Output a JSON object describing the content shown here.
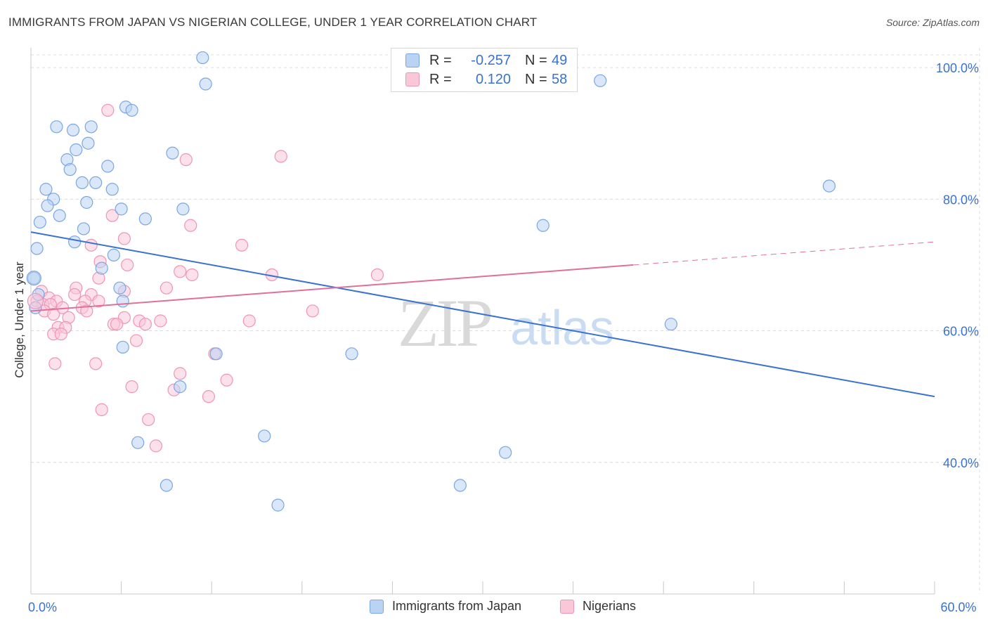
{
  "header": {
    "title": "IMMIGRANTS FROM JAPAN VS NIGERIAN COLLEGE, UNDER 1 YEAR CORRELATION CHART",
    "source": "Source: ZipAtlas.com"
  },
  "legend": {
    "rows": [
      {
        "r_label": "R =",
        "r_value": "-0.257",
        "n_label": "N =",
        "n_value": "49"
      },
      {
        "r_label": "R =",
        "r_value": "0.120",
        "n_label": "N =",
        "n_value": "58"
      }
    ]
  },
  "watermark": {
    "zip": "ZIP",
    "atlas": "atlas"
  },
  "colors": {
    "blue": "#3a72d0",
    "blue_fill": "#b9d3f4",
    "blue_stroke": "#7aa6e3",
    "pink": "#e0709a",
    "pink_fill": "#f9c7d8",
    "pink_stroke": "#ee95b5",
    "grid": "#dcdcdc",
    "tick_label": "#3a72d0"
  },
  "chart_data": {
    "type": "scatter",
    "xlim": [
      0,
      60
    ],
    "ylim": [
      20,
      103
    ],
    "ylabel": "College, Under 1 year",
    "x_tick_labels": [
      {
        "value": 0,
        "label": "0.0%"
      },
      {
        "value": 60,
        "label": "60.0%"
      }
    ],
    "y_tick_labels": [
      {
        "value": 100,
        "label": "100.0%"
      },
      {
        "value": 80,
        "label": "80.0%"
      },
      {
        "value": 60,
        "label": "60.0%"
      },
      {
        "value": 40,
        "label": "40.0%"
      }
    ],
    "grid": true,
    "legend_position": "top-center",
    "series": [
      {
        "name": "Immigrants from Japan",
        "color": "#3a72d0",
        "trend": {
          "x": [
            0,
            60
          ],
          "y": [
            75.0,
            50.0
          ],
          "dashed_from": null
        },
        "points": [
          [
            11.4,
            101.5
          ],
          [
            11.6,
            97.5
          ],
          [
            37.8,
            98.0
          ],
          [
            6.3,
            94.0
          ],
          [
            6.7,
            93.5
          ],
          [
            3.0,
            87.5
          ],
          [
            3.8,
            88.5
          ],
          [
            2.8,
            90.5
          ],
          [
            1.7,
            91.0
          ],
          [
            4.0,
            91.0
          ],
          [
            9.4,
            87.0
          ],
          [
            2.4,
            86.0
          ],
          [
            5.1,
            85.0
          ],
          [
            2.6,
            84.5
          ],
          [
            3.4,
            82.5
          ],
          [
            4.3,
            82.5
          ],
          [
            5.4,
            81.5
          ],
          [
            1.0,
            81.5
          ],
          [
            1.5,
            80.0
          ],
          [
            1.1,
            79.0
          ],
          [
            53.0,
            82.0
          ],
          [
            3.7,
            79.5
          ],
          [
            6.0,
            78.5
          ],
          [
            10.1,
            78.5
          ],
          [
            1.9,
            77.5
          ],
          [
            7.6,
            77.0
          ],
          [
            0.6,
            76.5
          ],
          [
            3.5,
            75.5
          ],
          [
            34.0,
            76.0
          ],
          [
            2.9,
            73.5
          ],
          [
            0.4,
            72.5
          ],
          [
            5.5,
            71.5
          ],
          [
            4.7,
            69.5
          ],
          [
            0.2,
            68.0
          ],
          [
            5.9,
            66.5
          ],
          [
            0.5,
            65.5
          ],
          [
            6.1,
            64.5
          ],
          [
            0.3,
            63.5
          ],
          [
            42.5,
            61.0
          ],
          [
            6.1,
            57.5
          ],
          [
            12.3,
            56.5
          ],
          [
            21.3,
            56.5
          ],
          [
            9.9,
            51.5
          ],
          [
            15.5,
            44.0
          ],
          [
            7.1,
            43.0
          ],
          [
            31.5,
            41.5
          ],
          [
            9.0,
            36.5
          ],
          [
            28.5,
            36.5
          ],
          [
            16.4,
            33.5
          ]
        ]
      },
      {
        "name": "Nigerians",
        "color": "#e0709a",
        "trend": {
          "x": [
            0,
            40
          ],
          "y": [
            63.0,
            70.0
          ],
          "dashed_from": 40,
          "dashed_to": [
            60,
            73.5
          ]
        },
        "points": [
          [
            5.1,
            93.5
          ],
          [
            16.6,
            86.5
          ],
          [
            10.3,
            86.0
          ],
          [
            5.4,
            77.5
          ],
          [
            10.6,
            76.0
          ],
          [
            6.2,
            74.0
          ],
          [
            4.0,
            73.0
          ],
          [
            14.0,
            73.0
          ],
          [
            6.4,
            70.0
          ],
          [
            4.6,
            70.5
          ],
          [
            10.7,
            68.5
          ],
          [
            16.0,
            68.5
          ],
          [
            9.9,
            69.0
          ],
          [
            23.0,
            68.5
          ],
          [
            4.5,
            68.0
          ],
          [
            3.0,
            66.5
          ],
          [
            9.0,
            66.5
          ],
          [
            0.7,
            66.0
          ],
          [
            6.2,
            66.0
          ],
          [
            2.9,
            65.5
          ],
          [
            4.0,
            65.5
          ],
          [
            1.2,
            65.0
          ],
          [
            3.6,
            64.5
          ],
          [
            4.5,
            64.5
          ],
          [
            0.4,
            64.5
          ],
          [
            1.7,
            64.5
          ],
          [
            0.8,
            64.0
          ],
          [
            1.3,
            64.0
          ],
          [
            2.1,
            63.5
          ],
          [
            3.4,
            63.5
          ],
          [
            3.7,
            63.0
          ],
          [
            0.9,
            63.0
          ],
          [
            1.5,
            62.5
          ],
          [
            18.7,
            63.0
          ],
          [
            6.2,
            62.0
          ],
          [
            2.5,
            62.0
          ],
          [
            5.5,
            61.0
          ],
          [
            14.5,
            61.5
          ],
          [
            7.2,
            61.5
          ],
          [
            5.7,
            61.0
          ],
          [
            1.8,
            60.5
          ],
          [
            2.3,
            60.5
          ],
          [
            7.6,
            61.0
          ],
          [
            8.6,
            61.5
          ],
          [
            1.5,
            59.5
          ],
          [
            2.0,
            59.5
          ],
          [
            7.0,
            58.5
          ],
          [
            12.2,
            56.5
          ],
          [
            4.3,
            55.0
          ],
          [
            1.6,
            55.0
          ],
          [
            9.9,
            53.5
          ],
          [
            13.0,
            52.5
          ],
          [
            6.7,
            51.5
          ],
          [
            9.5,
            51.0
          ],
          [
            11.8,
            50.0
          ],
          [
            4.7,
            48.0
          ],
          [
            7.8,
            46.5
          ],
          [
            8.3,
            42.5
          ]
        ]
      }
    ]
  }
}
